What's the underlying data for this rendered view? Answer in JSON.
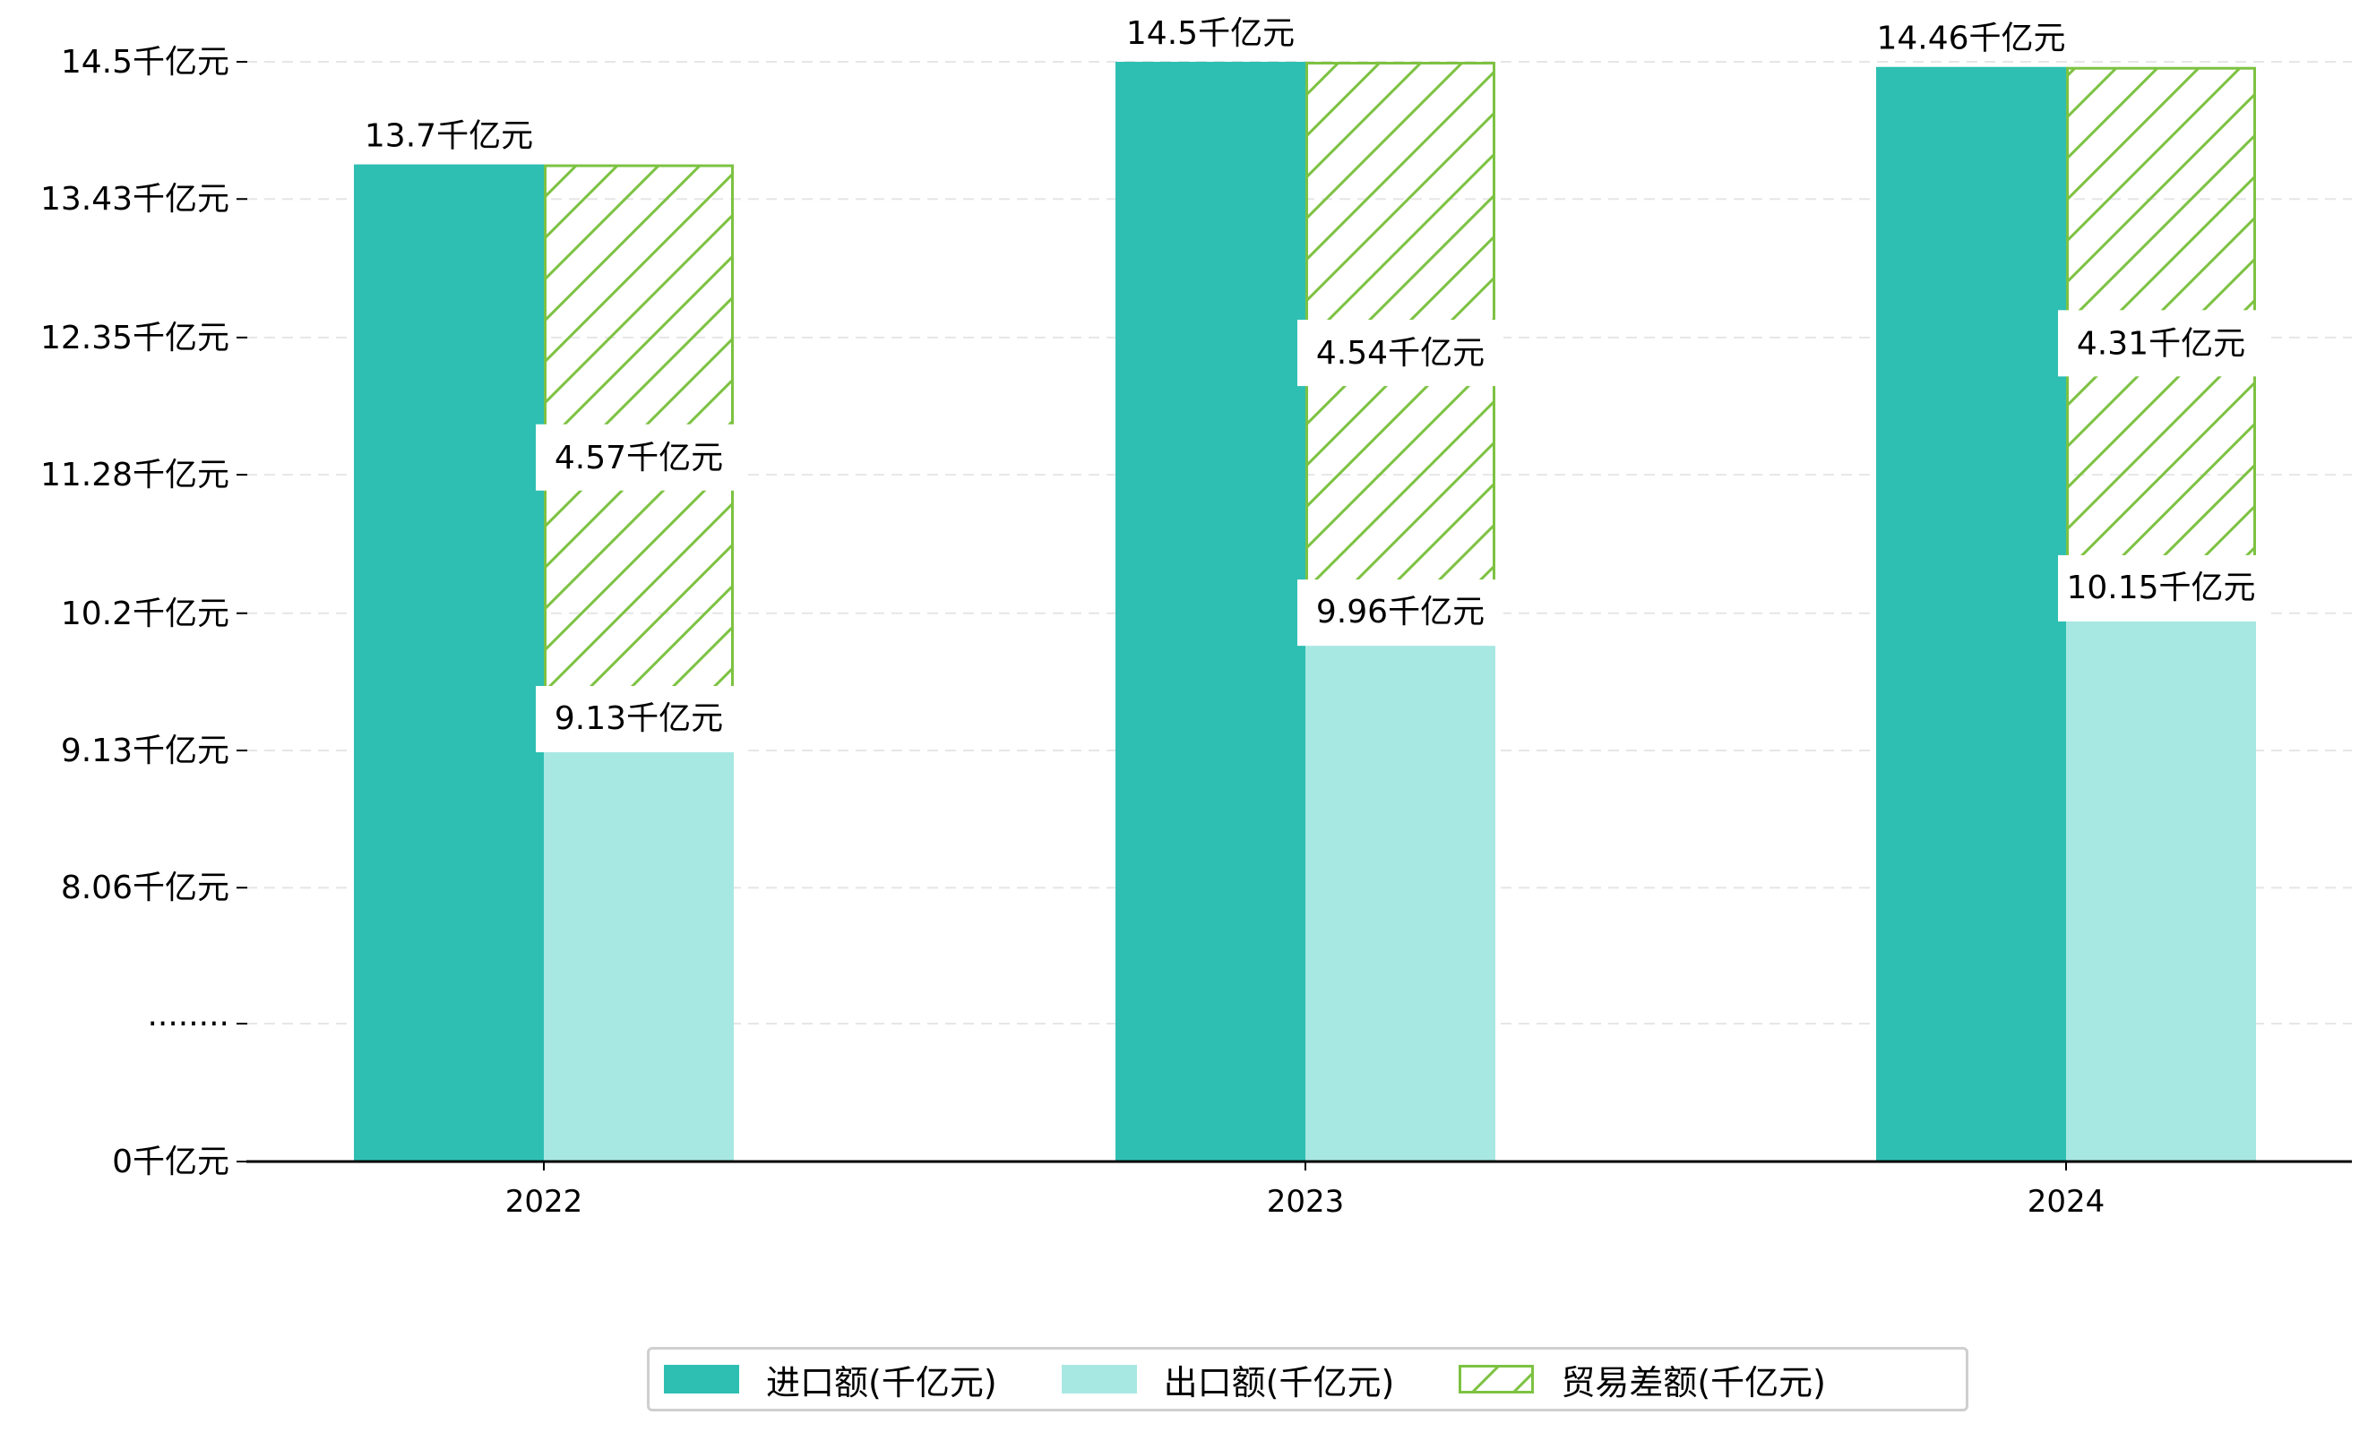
{
  "chart_data": {
    "type": "bar",
    "categories": [
      "2022",
      "2023",
      "2024"
    ],
    "series": [
      {
        "name": "进口额(千亿元)",
        "values": [
          13.7,
          14.5,
          14.46
        ],
        "labels": [
          "13.7千亿元",
          "14.5千亿元",
          "14.46千亿元"
        ],
        "color": "#2ebfb2"
      },
      {
        "name": "出口额(千亿元)",
        "values": [
          9.13,
          9.96,
          10.15
        ],
        "labels": [
          "9.13千亿元",
          "9.96千亿元",
          "10.15千亿元"
        ],
        "color": "#a8e8e2"
      },
      {
        "name": "贸易差额(千亿元)",
        "values": [
          4.57,
          4.54,
          4.31
        ],
        "labels": [
          "4.57千亿元",
          "4.54千亿元",
          "4.31千亿元"
        ],
        "color": "#7dc242",
        "hatch": true
      }
    ],
    "y_ticks": [
      {
        "value": 0,
        "label": "0千亿元"
      },
      {
        "value": 7.0,
        "label": "········"
      },
      {
        "value": 8.06,
        "label": "8.06千亿元"
      },
      {
        "value": 9.13,
        "label": "9.13千亿元"
      },
      {
        "value": 10.2,
        "label": "10.2千亿元"
      },
      {
        "value": 11.28,
        "label": "11.28千亿元"
      },
      {
        "value": 12.35,
        "label": "12.35千亿元"
      },
      {
        "value": 13.43,
        "label": "13.43千亿元"
      },
      {
        "value": 14.5,
        "label": "14.5千亿元"
      }
    ],
    "axis_break": {
      "from": 0,
      "to": 7.0
    },
    "ylim": [
      0,
      14.5
    ],
    "grid": "horizontal dashed",
    "legend_position": "bottom-center"
  }
}
